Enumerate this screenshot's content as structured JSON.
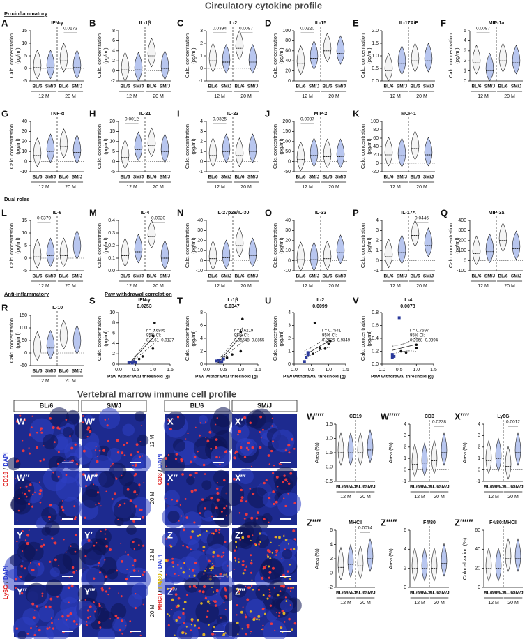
{
  "title": "Circulatory cytokine profile",
  "subtitle": "Vertebral marrow immune cell profile",
  "sections": [
    "Pro-inflammatory",
    "Dual roles",
    "Anti-inflammatory",
    "Paw withdrawal correlation"
  ],
  "ylabel": [
    "Calc. concentration",
    "(pg/ml)"
  ],
  "xlabel": "Paw withdrawal threshold (g)",
  "groups": [
    "BL/6",
    "SM/J",
    "BL/6",
    "SM/J"
  ],
  "ages": [
    "12 M",
    "20 M"
  ],
  "images": [
    [
      "W",
      "W′",
      "X",
      "X′"
    ],
    [
      "W″",
      "W‴",
      "X″",
      "X‴"
    ],
    [
      "Y",
      "Y′",
      "Z",
      "Z′"
    ],
    [
      "Y″",
      "Y‴",
      "Z″",
      "Z‴"
    ]
  ],
  "stains": [
    {
      "parts": [
        "CD19",
        " / ",
        "DAPI"
      ],
      "colors": [
        "#e02020",
        "#222222",
        "#2a3bd0"
      ]
    },
    {
      "parts": [
        "CD3",
        " / ",
        "DAPI"
      ],
      "colors": [
        "#e02020",
        "#222222",
        "#2a3bd0"
      ]
    },
    {
      "parts": [
        "Ly6G",
        " / ",
        "DAPI"
      ],
      "colors": [
        "#e02020",
        "#222222",
        "#2a3bd0"
      ]
    },
    {
      "parts": [
        "MHCII",
        " / ",
        "F4/80",
        " / ",
        "DAPI"
      ],
      "colors": [
        "#e02020",
        "#222222",
        "#d9b400",
        "#222222",
        "#2a3bd0"
      ]
    }
  ],
  "chart_data": [
    {
      "type": "violin",
      "label": "A",
      "title": "IFN-γ",
      "values": [
        0.3,
        0.3,
        3,
        0.3
      ],
      "ylim": [
        -5,
        15
      ],
      "yticks": [
        -5,
        0,
        5,
        10,
        15
      ],
      "p_20M": "0.0173"
    },
    {
      "type": "violin",
      "label": "B",
      "title": "IL-1β",
      "values": [
        0.2,
        0.2,
        3,
        0.5
      ],
      "ylim": [
        -2,
        8
      ],
      "yticks": [
        -2,
        0,
        2,
        4,
        6,
        8
      ]
    },
    {
      "type": "violin",
      "label": "C",
      "title": "IL-2",
      "values": [
        0.6,
        0.5,
        1.6,
        0.5
      ],
      "ylim": [
        -1,
        3
      ],
      "yticks": [
        -1,
        0,
        1,
        2,
        3
      ],
      "p_12M": "0.0394",
      "p_20M": "0.0087"
    },
    {
      "type": "violin",
      "label": "D",
      "title": "IL-15",
      "values": [
        35,
        45,
        60,
        55
      ],
      "ylim": [
        0,
        100
      ],
      "yticks": [
        0,
        20,
        40,
        60,
        80,
        100
      ],
      "p_12M": "0.0220"
    },
    {
      "type": "violin",
      "label": "E",
      "title": "IL-17A/F",
      "values": [
        0.4,
        0.7,
        0.8,
        0.8
      ],
      "ylim": [
        0,
        2
      ],
      "yticks": [
        {
          "value": 0,
          "label": "0.0"
        },
        0.5,
        {
          "value": 1,
          "label": "1.0"
        },
        1.5,
        {
          "value": 2,
          "label": "2.0"
        }
      ]
    },
    {
      "type": "violin",
      "label": "F",
      "title": "MIP-1a",
      "values": [
        1.8,
        1,
        2,
        1.8
      ],
      "ylim": [
        0,
        5
      ],
      "yticks": [
        0,
        1,
        2,
        3,
        4,
        5
      ],
      "p_12M": "0.0087"
    },
    {
      "type": "violin",
      "label": "G",
      "title": "TNF-α",
      "values": [
        6,
        10,
        15,
        9
      ],
      "ylim": [
        -10,
        40
      ],
      "yticks": [
        -10,
        0,
        10,
        20,
        30,
        40
      ]
    },
    {
      "type": "violin",
      "label": "H",
      "title": "IL-21",
      "values": [
        2,
        6,
        8,
        5
      ],
      "ylim": [
        -5,
        20
      ],
      "yticks": [
        -5,
        0,
        5,
        10,
        15,
        20
      ],
      "p_12M": "0.0012"
    },
    {
      "type": "violin",
      "label": "I",
      "title": "IL-23",
      "values": [
        0.6,
        1,
        0.6,
        1
      ],
      "ylim": [
        -1,
        4
      ],
      "yticks": [
        -1,
        0,
        1,
        2,
        3,
        4
      ],
      "p_12M": "0.0325"
    },
    {
      "type": "violin",
      "label": "J",
      "title": "MIP-2",
      "values": [
        10,
        30,
        25,
        25
      ],
      "ylim": [
        -50,
        200
      ],
      "yticks": [
        -50,
        0,
        50,
        100,
        150,
        200
      ],
      "p_12M": "0.0087"
    },
    {
      "type": "violin",
      "label": "K",
      "title": "MCP-1",
      "values": [
        20,
        18,
        35,
        20
      ],
      "ylim": [
        -20,
        100
      ],
      "yticks": [
        -20,
        0,
        20,
        40,
        60,
        80,
        100
      ]
    },
    {
      "type": "violin",
      "label": "L",
      "title": "IL-6",
      "values": [
        0.5,
        1,
        1,
        4
      ],
      "ylim": [
        -5,
        15
      ],
      "yticks": [
        -5,
        0,
        5,
        10,
        15
      ],
      "p_12M": "0.0379"
    },
    {
      "type": "violin",
      "label": "M",
      "title": "IL-4",
      "values": [
        0.12,
        0.15,
        0.27,
        0.1
      ],
      "ylim": [
        0,
        0.4
      ],
      "yticks": [
        {
          "value": 0,
          "label": "0.0"
        },
        0.1,
        0.2,
        0.3,
        0.4
      ],
      "p_20M": "0.0020"
    },
    {
      "type": "violin",
      "label": "N",
      "title": "IL-27p28/IL-30",
      "values": [
        2,
        3,
        15,
        5
      ],
      "ylim": [
        -10,
        40
      ],
      "yticks": [
        -10,
        0,
        10,
        20,
        30,
        40
      ]
    },
    {
      "type": "violin",
      "label": "O",
      "title": "IL-33",
      "values": [
        1,
        1,
        2,
        8
      ],
      "ylim": [
        -10,
        40
      ],
      "yticks": [
        -10,
        0,
        10,
        20,
        30,
        40
      ]
    },
    {
      "type": "violin",
      "label": "P",
      "title": "IL-17A",
      "values": [
        0.4,
        0.8,
        2.5,
        1.5
      ],
      "ylim": [
        -1,
        4
      ],
      "yticks": [
        -1,
        0,
        1,
        2,
        3,
        4
      ],
      "p_20M": "0.0446"
    },
    {
      "type": "violin",
      "label": "Q",
      "title": "MIP-3a",
      "values": [
        70,
        90,
        200,
        120
      ],
      "ylim": [
        -100,
        400
      ],
      "yticks": [
        -100,
        0,
        100,
        200,
        300,
        400
      ]
    },
    {
      "type": "violin",
      "label": "R",
      "title": "IL-10",
      "values": [
        15,
        20,
        60,
        40
      ],
      "ylim": [
        -50,
        150
      ],
      "yticks": [
        -50,
        0,
        50,
        100,
        150
      ]
    },
    {
      "type": "scatter",
      "label": "S",
      "title": "IFN-γ",
      "p": "0.0253",
      "r": "r = 0.6805",
      "ci_label": "95% CI:",
      "ci": "0.1161–0.9127",
      "xlim": [
        0,
        1.5
      ],
      "xticks": [
        {
          "value": 0,
          "label": "0.0"
        },
        0.5,
        {
          "value": 1,
          "label": "1.0"
        },
        1.5
      ],
      "ylim": [
        0,
        10
      ],
      "yticks": [
        0,
        2,
        4,
        6,
        8,
        10
      ],
      "series": [
        {
          "color": "#2b3a9b",
          "x": [
            0.3,
            0.35,
            0.4,
            0.45,
            0.5
          ],
          "values": [
            0.3,
            0.4,
            0.2,
            0.5,
            0.3
          ]
        },
        {
          "color": "#111111",
          "x": [
            0.6,
            0.7,
            1.0,
            1.05,
            1.0
          ],
          "values": [
            1,
            1.5,
            5.5,
            8,
            3
          ]
        }
      ]
    },
    {
      "type": "scatter",
      "label": "T",
      "title": "IL-1β",
      "p": "0.0347",
      "r": "r = 0.6219",
      "ci_label": "95% CI:",
      "ci": "0.05548–0.8855",
      "xlim": [
        0,
        1.5
      ],
      "xticks": [
        {
          "value": 0,
          "label": "0.0"
        },
        0.5,
        {
          "value": 1,
          "label": "1.0"
        },
        1.5
      ],
      "ylim": [
        0,
        8
      ],
      "yticks": [
        0,
        2,
        4,
        6,
        8
      ],
      "series": [
        {
          "color": "#2b3a9b",
          "x": [
            0.3,
            0.35,
            0.4,
            0.5,
            0.45
          ],
          "values": [
            0.5,
            0.6,
            0.3,
            0.8,
            0.4
          ]
        },
        {
          "color": "#111111",
          "x": [
            0.6,
            0.75,
            1.0,
            1.05,
            1.0
          ],
          "values": [
            1,
            1.5,
            5,
            7,
            2
          ]
        }
      ]
    },
    {
      "type": "scatter",
      "label": "U",
      "title": "IL-2",
      "p": "0.0099",
      "r": "r = 0.7541",
      "ci_label": "95% CI:",
      "ci": "0.2626–0.9349",
      "xlim": [
        0,
        1.5
      ],
      "xticks": [
        {
          "value": 0,
          "label": "0.0"
        },
        0.5,
        {
          "value": 1,
          "label": "1.0"
        },
        1.5
      ],
      "ylim": [
        0,
        4
      ],
      "yticks": [
        0,
        1,
        2,
        3,
        4
      ],
      "series": [
        {
          "color": "#2b3a9b",
          "x": [
            0.3,
            0.35,
            0.4,
            0.4
          ],
          "values": [
            0.2,
            0.5,
            0.7,
            0.9
          ]
        },
        {
          "color": "#111111",
          "x": [
            0.6,
            0.75,
            1.0,
            1.05,
            0.9,
            0.55
          ],
          "values": [
            3.2,
            1.2,
            1.6,
            1.8,
            1.2,
            0.8
          ]
        }
      ]
    },
    {
      "type": "scatter",
      "label": "V",
      "title": "IL-4",
      "p": "0.0078",
      "r": "r = 0.7697",
      "ci_label": "95% CI:",
      "ci": "0.2968–0.9394",
      "xlim": [
        0,
        1.5
      ],
      "xticks": [
        {
          "value": 0,
          "label": "0.0"
        },
        0.5,
        {
          "value": 1,
          "label": "1.0"
        },
        1.5
      ],
      "ylim": [
        0,
        0.8
      ],
      "yticks": [
        {
          "value": 0,
          "label": "0.0"
        },
        0.2,
        0.4,
        0.6,
        0.8
      ],
      "series": [
        {
          "color": "#2b3a9b",
          "x": [
            0.3,
            0.3,
            0.35,
            0.5
          ],
          "values": [
            0.1,
            0.15,
            0.12,
            0.72
          ]
        },
        {
          "color": "#111111",
          "x": [
            0.55,
            0.7,
            1.0,
            1.0
          ],
          "values": [
            0.2,
            0.18,
            0.3,
            0.25
          ]
        }
      ]
    },
    {
      "type": "violin",
      "label": "W′′′′",
      "title": "CD19",
      "ylabel": "Area (%)",
      "values": [
        0.5,
        0.5,
        0.5,
        0.6
      ],
      "ylim": [
        -0.5,
        1.5
      ],
      "yticks": [
        -0.5,
        {
          "value": 0,
          "label": "0.0"
        },
        0.5,
        {
          "value": 1,
          "label": "1.0"
        },
        1.5
      ]
    },
    {
      "type": "violin",
      "label": "W′′′′′",
      "title": "CD3",
      "ylabel": "Area (%)",
      "values": [
        0.5,
        0.6,
        0.8,
        1.5
      ],
      "ylim": [
        -1,
        4
      ],
      "yticks": [
        -1,
        0,
        1,
        2,
        3,
        4
      ],
      "p_20M": "0.0238"
    },
    {
      "type": "violin",
      "label": "X′′′′",
      "title": "Ly6G",
      "ylabel": "Area (%)",
      "values": [
        0.8,
        1,
        0.3,
        1.5
      ],
      "ylim": [
        -1,
        4
      ],
      "yticks": [
        -1,
        0,
        1,
        2,
        3,
        4
      ],
      "p_20M": "0.0012"
    },
    {
      "type": "violin",
      "label": "Z′′′′",
      "title": "MHCII",
      "ylabel": "Area (%)",
      "values": [
        0.8,
        1.2,
        1,
        2
      ],
      "ylim": [
        -2,
        6
      ],
      "yticks": [
        -2,
        0,
        2,
        4,
        6
      ],
      "p_20M": "0.0074"
    },
    {
      "type": "violin",
      "label": "Z′′′′′",
      "title": "F4/80",
      "ylabel": "Area (%)",
      "values": [
        2,
        2,
        2,
        2.5
      ],
      "ylim": [
        0,
        6
      ],
      "yticks": [
        0,
        2,
        4,
        6
      ]
    },
    {
      "type": "violin",
      "label": "Z′′′′′′",
      "title": "F4/80:MHCII",
      "ylabel": "Colocalization (%)",
      "values": [
        20,
        20,
        30,
        30
      ],
      "ylim": [
        0,
        60
      ],
      "yticks": [
        0,
        20,
        40,
        60
      ]
    }
  ]
}
